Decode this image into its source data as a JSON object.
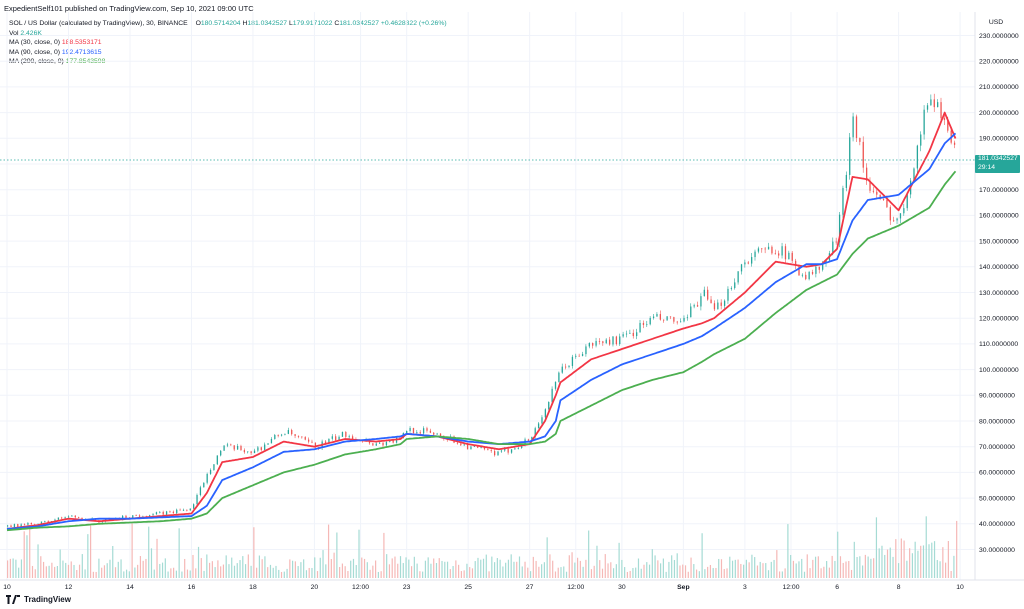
{
  "header": {
    "publisher_line": "ExpedientSelf101 published on TradingView.com, Sep 10, 2021 09:00 UTC"
  },
  "legend": {
    "symbol_line": "SOL / US Dollar (calculated by TradingView), 30, BINANCE",
    "o_label": "O",
    "o_value": "180.5714204",
    "h_label": "H",
    "h_value": "181.0342527",
    "l_label": "L",
    "l_value": "179.9171022",
    "c_label": "C",
    "c_value": "181.0342527",
    "change": "+0.4628322 (+0.26%)",
    "vol_label": "Vol",
    "vol_value": "2.426K",
    "ma30_label": "MA (30, close, 0)",
    "ma30_value": "188.5353171",
    "ma90_label": "MA (90, close, 0)",
    "ma90_value": "192.4713615",
    "ma200_label": "MA (200, close, 0)",
    "ma200_value": "177.8543598"
  },
  "axis": {
    "currency": "USD"
  },
  "price_tag": {
    "price": "181.0342527",
    "countdown": "29:14"
  },
  "footer": {
    "brand": "TradingView"
  },
  "colors": {
    "ma30": "#f23645",
    "ma90": "#2962ff",
    "ma200": "#4caf50",
    "up": "#26a69a",
    "down": "#ef5350",
    "grid": "#f0f3fa",
    "text": "#131722"
  },
  "chart_data": {
    "type": "line",
    "title": "SOL / US Dollar (calculated by TradingView), 30, BINANCE",
    "y_ticks": [
      "30.0000000",
      "40.0000000",
      "50.0000000",
      "60.0000000",
      "70.0000000",
      "80.0000000",
      "90.0000000",
      "100.0000000",
      "110.0000000",
      "120.0000000",
      "130.0000000",
      "140.0000000",
      "150.0000000",
      "160.0000000",
      "170.0000000",
      "180.0000000",
      "190.0000000",
      "200.0000000",
      "210.0000000",
      "220.0000000",
      "230.0000000"
    ],
    "ylim": [
      22,
      233
    ],
    "x_ticks": [
      "10",
      "12",
      "14",
      "16",
      "18",
      "20",
      "12:00",
      "23",
      "25",
      "27",
      "12:00",
      "30",
      "Sep",
      "3",
      "12:00",
      "6",
      "8",
      "10"
    ],
    "grid": true,
    "x_day": [
      0,
      1,
      2,
      3,
      4,
      5,
      6,
      6.5,
      7,
      8,
      9,
      10,
      11,
      12,
      12.8,
      13,
      14,
      15,
      16,
      17,
      17.5,
      17.85,
      18,
      19,
      20,
      21,
      22,
      22.6,
      23,
      24,
      25,
      26,
      26.5,
      27,
      27.5,
      28,
      29,
      30,
      30.5,
      30.9
    ],
    "price": [
      39,
      40,
      43,
      41,
      43,
      44,
      46,
      60,
      70,
      68,
      76,
      70,
      75,
      71,
      73,
      77,
      75,
      70,
      67,
      73,
      85,
      95,
      100,
      110,
      112,
      120,
      118,
      130,
      122,
      143,
      148,
      136,
      140,
      152,
      200,
      170,
      157,
      208,
      197,
      181
    ],
    "series": [
      {
        "name": "MA (30, close, 0)",
        "values": [
          38,
          39.5,
          42,
          41,
          42,
          43,
          44,
          52,
          64,
          66,
          72,
          70,
          73,
          72,
          73,
          75,
          74,
          71,
          69,
          71,
          80,
          90,
          95,
          104,
          108,
          112,
          116,
          118,
          120,
          130,
          142,
          140,
          141,
          147,
          175,
          174,
          162,
          185,
          200,
          188.5
        ]
      },
      {
        "name": "MA (90, close, 0)",
        "values": [
          38,
          39,
          41,
          42,
          42,
          42.5,
          43,
          47,
          57,
          62,
          68,
          69,
          72,
          73,
          74,
          75,
          74,
          72,
          71,
          72,
          74,
          80,
          88,
          96,
          102,
          106,
          110,
          113,
          116,
          124,
          134,
          141,
          141,
          143,
          158,
          166,
          168,
          178,
          188,
          192.5
        ]
      },
      {
        "name": "MA (200, close, 0)",
        "values": [
          37.5,
          38.5,
          39,
          40,
          40.5,
          41,
          42,
          44,
          50,
          55,
          60,
          63,
          67,
          69,
          71,
          73,
          74,
          73,
          71,
          71,
          72,
          75,
          80,
          86,
          92,
          96,
          99,
          103,
          106,
          112,
          122,
          131,
          134,
          137,
          145,
          151,
          156,
          163,
          172,
          177.9
        ]
      }
    ]
  }
}
